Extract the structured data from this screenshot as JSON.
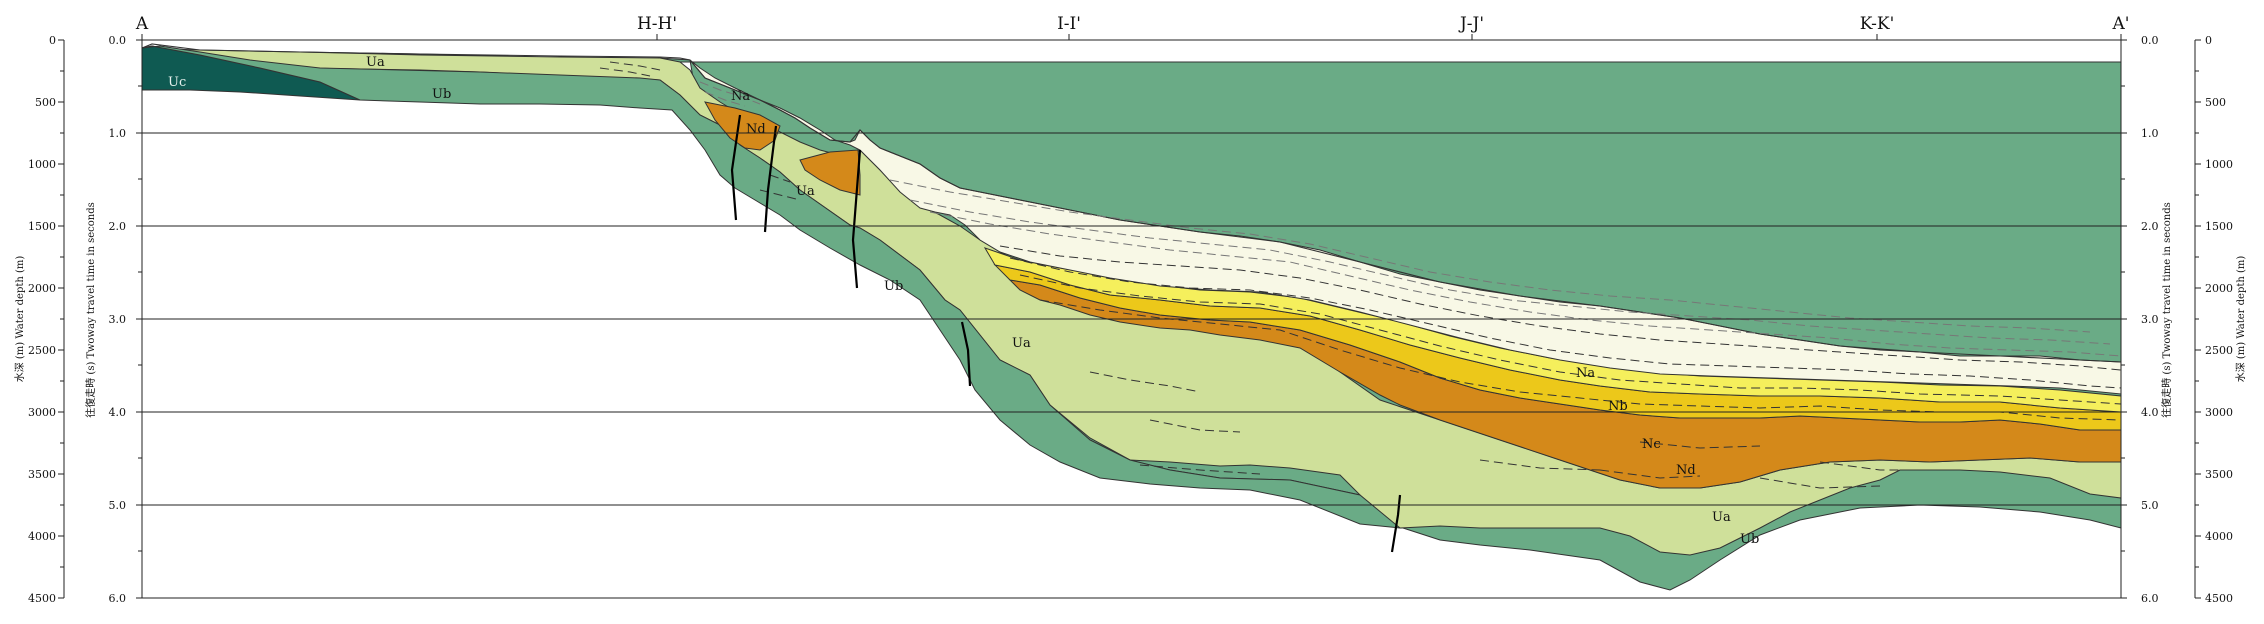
{
  "section": {
    "start_label": "A",
    "end_label": "A'",
    "crossings": [
      "H-H'",
      "I-I'",
      "J-J'",
      "K-K'"
    ]
  },
  "axes": {
    "twt_ticks": [
      "0.0",
      "1.0",
      "2.0",
      "3.0",
      "4.0",
      "5.0",
      "6.0"
    ],
    "depth_ticks": [
      "0",
      "500",
      "1000",
      "1500",
      "2000",
      "2500",
      "3000",
      "3500",
      "4000",
      "4500"
    ],
    "left_twt_label": "往復走時 (s)  Twoway travel time in seconds",
    "left_depth_label": "水深 (m)   Water depth (m)",
    "right_twt_label": "往復走時 (s) Twoway travel time in seconds",
    "right_depth_label": "水深 (m)   Water depth (m)"
  },
  "units": {
    "Uc": "Uc",
    "Ub": "Ub",
    "Ua": "Ua",
    "Nd": "Nd",
    "Nc": "Nc",
    "Nb": "Nb",
    "Na": "Na"
  },
  "colors": {
    "Uc": "#0f5a52",
    "Ub": "#6aab86",
    "Ua": "#cfe09a",
    "Nd": "#d4891a",
    "Nc": "#ecc81a",
    "Nb": "#f5ef5c",
    "Na": "#f8f8e6",
    "sea": "#ffffff"
  }
}
